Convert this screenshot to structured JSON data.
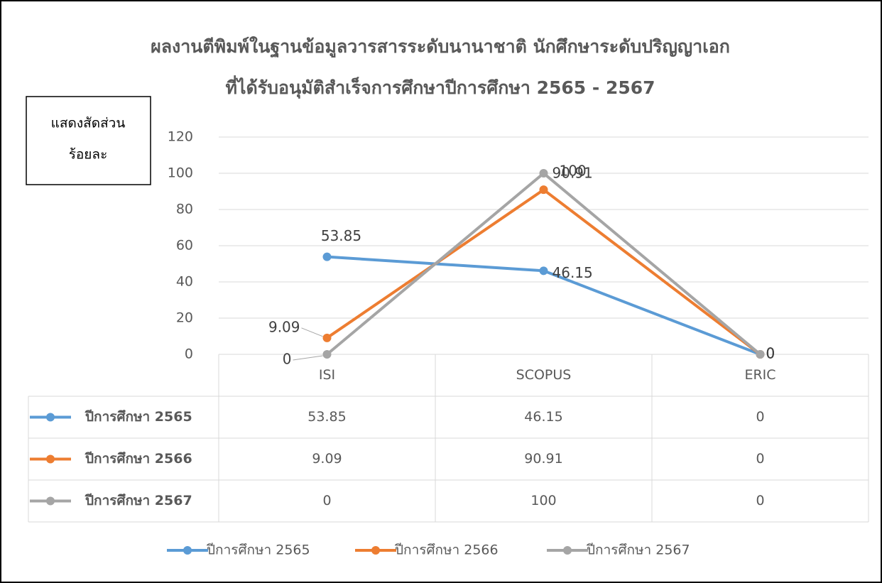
{
  "chart_data": {
    "type": "line",
    "title": [
      "ผลงานตีพิมพ์ในฐานข้อมูลวารสารระดับนานาชาติ นักศึกษาระดับปริญญาเอก",
      "ที่ได้รับอนุมัติสำเร็จการศึกษาปีการศึกษา 2565 - 2567"
    ],
    "annotation": [
      "แสดงสัดส่วน",
      "ร้อยละ"
    ],
    "categories": [
      "ISI",
      "SCOPUS",
      "ERIC"
    ],
    "series": [
      {
        "name": "ปีการศึกษา 2565",
        "color": "#5b9bd5",
        "values": [
          53.85,
          46.15,
          0
        ]
      },
      {
        "name": "ปีการศึกษา 2566",
        "color": "#ed7d31",
        "values": [
          9.09,
          90.91,
          0
        ]
      },
      {
        "name": "ปีการศึกษา 2567",
        "color": "#a5a5a5",
        "values": [
          0,
          100,
          0
        ]
      }
    ],
    "ylim": [
      0,
      120
    ],
    "yticks": [
      0,
      20,
      40,
      60,
      80,
      100,
      120
    ],
    "grid": true,
    "data_table": true,
    "legend": "bottom"
  }
}
